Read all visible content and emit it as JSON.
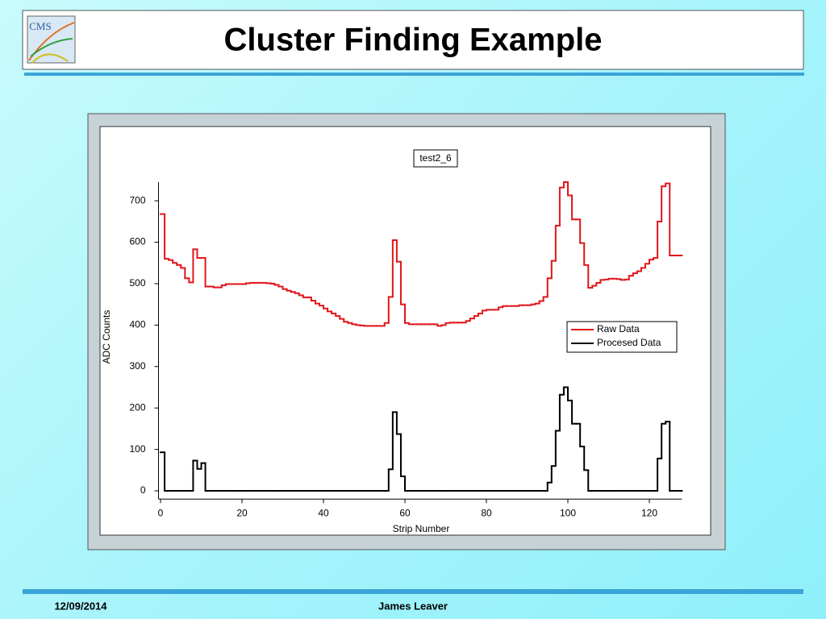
{
  "header": {
    "title": "Cluster Finding Example",
    "logo_text": "CMS"
  },
  "footer": {
    "date": "12/09/2014",
    "author": "James Leaver"
  },
  "chart_data": {
    "type": "step",
    "title": "test2_6",
    "x_label": "Strip Number",
    "y_label": "ADC Counts",
    "x": [
      0,
      1,
      2,
      3,
      4,
      5,
      6,
      7,
      8,
      9,
      10,
      11,
      12,
      13,
      14,
      15,
      16,
      17,
      18,
      19,
      20,
      21,
      22,
      23,
      24,
      25,
      26,
      27,
      28,
      29,
      30,
      31,
      32,
      33,
      34,
      35,
      36,
      37,
      38,
      39,
      40,
      41,
      42,
      43,
      44,
      45,
      46,
      47,
      48,
      49,
      50,
      51,
      52,
      53,
      54,
      55,
      56,
      57,
      58,
      59,
      60,
      61,
      62,
      63,
      64,
      65,
      66,
      67,
      68,
      69,
      70,
      71,
      72,
      73,
      74,
      75,
      76,
      77,
      78,
      79,
      80,
      81,
      82,
      83,
      84,
      85,
      86,
      87,
      88,
      89,
      90,
      91,
      92,
      93,
      94,
      95,
      96,
      97,
      98,
      99,
      100,
      101,
      102,
      103,
      104,
      105,
      106,
      107,
      108,
      109,
      110,
      111,
      112,
      113,
      114,
      115,
      116,
      117,
      118,
      119,
      120,
      121,
      122,
      123,
      124,
      125,
      126,
      127
    ],
    "series": [
      {
        "name": "Raw Data",
        "color": "#e0161b",
        "values": [
          668,
          560,
          557,
          550,
          545,
          538,
          513,
          503,
          583,
          562,
          562,
          493,
          493,
          491,
          491,
          496,
          499,
          499,
          499,
          499,
          499,
          501,
          502,
          502,
          502,
          502,
          501,
          500,
          497,
          493,
          487,
          483,
          480,
          477,
          472,
          467,
          467,
          459,
          452,
          447,
          440,
          433,
          428,
          422,
          415,
          408,
          405,
          402,
          400,
          399,
          398,
          398,
          398,
          398,
          398,
          405,
          468,
          605,
          553,
          450,
          405,
          402,
          402,
          402,
          402,
          402,
          402,
          402,
          398,
          400,
          405,
          406,
          406,
          406,
          406,
          410,
          416,
          422,
          428,
          435,
          437,
          437,
          437,
          443,
          446,
          446,
          446,
          446,
          448,
          448,
          448,
          450,
          452,
          458,
          468,
          513,
          555,
          640,
          732,
          745,
          713,
          655,
          655,
          598,
          545,
          490,
          495,
          502,
          509,
          510,
          512,
          512,
          511,
          509,
          510,
          519,
          525,
          530,
          538,
          548,
          558,
          562,
          650,
          735,
          742,
          568,
          568,
          568
        ]
      },
      {
        "name": "Procesed Data",
        "color": "#000000",
        "values": [
          93,
          0,
          0,
          0,
          0,
          0,
          0,
          0,
          73,
          53,
          67,
          0,
          0,
          0,
          0,
          0,
          0,
          0,
          0,
          0,
          0,
          0,
          0,
          0,
          0,
          0,
          0,
          0,
          0,
          0,
          0,
          0,
          0,
          0,
          0,
          0,
          0,
          0,
          0,
          0,
          0,
          0,
          0,
          0,
          0,
          0,
          0,
          0,
          0,
          0,
          0,
          0,
          0,
          0,
          0,
          0,
          52,
          190,
          137,
          35,
          0,
          0,
          0,
          0,
          0,
          0,
          0,
          0,
          0,
          0,
          0,
          0,
          0,
          0,
          0,
          0,
          0,
          0,
          0,
          0,
          0,
          0,
          0,
          0,
          0,
          0,
          0,
          0,
          0,
          0,
          0,
          0,
          0,
          0,
          0,
          20,
          60,
          145,
          232,
          250,
          218,
          162,
          162,
          107,
          50,
          0,
          0,
          0,
          0,
          0,
          0,
          0,
          0,
          0,
          0,
          0,
          0,
          0,
          0,
          0,
          0,
          0,
          78,
          162,
          167,
          0,
          0,
          0
        ]
      }
    ],
    "xlim": [
      -0.5,
      128
    ],
    "xticks": [
      0,
      20,
      40,
      60,
      80,
      100,
      120
    ],
    "ylim": [
      -20,
      745
    ],
    "yticks": [
      0,
      100,
      200,
      300,
      400,
      500,
      600,
      700
    ],
    "grid": false,
    "legend": "right"
  }
}
